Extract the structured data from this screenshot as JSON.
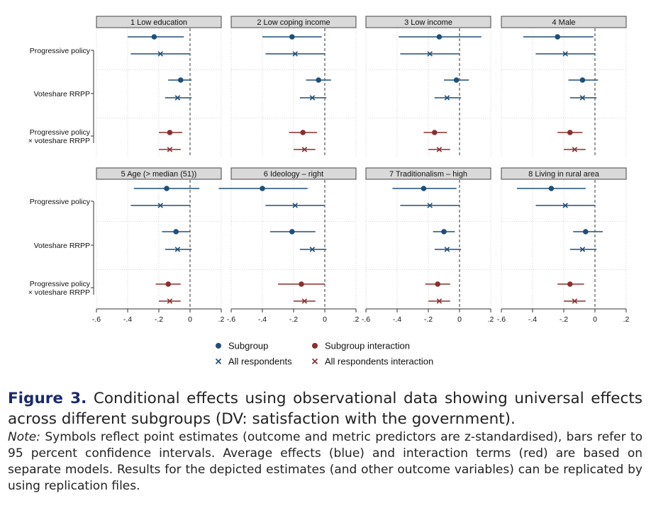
{
  "chart_data": {
    "type": "scatter",
    "subtype": "coefficient-plot",
    "xlim": [
      -0.6,
      0.2
    ],
    "xticks": [
      -0.6,
      -0.4,
      -0.2,
      0,
      0.2
    ],
    "xtick_labels": [
      "-.6",
      "-.4",
      "-.2",
      "0",
      ".2"
    ],
    "reference_line": 0,
    "row_labels": [
      "Progressive policy",
      "Voteshare RRPP",
      "Progressive policy\n× voteshare RRPP"
    ],
    "legend": [
      {
        "label": "Subgroup",
        "marker": "dot",
        "color": "#1f4e79"
      },
      {
        "label": "Subgroup interaction",
        "marker": "dot",
        "color": "#8b2e2e"
      },
      {
        "label": "All respondents",
        "marker": "x",
        "color": "#1f4e79"
      },
      {
        "label": "All respondents interaction",
        "marker": "x",
        "color": "#8b2e2e"
      }
    ],
    "panels": [
      {
        "title": "1 Low education",
        "rows": [
          {
            "sub": [
              -0.23,
              -0.4,
              -0.04
            ],
            "all": [
              -0.19,
              -0.38,
              0.0
            ]
          },
          {
            "sub": [
              -0.06,
              -0.14,
              0.01
            ],
            "all": [
              -0.08,
              -0.16,
              0.01
            ]
          },
          {
            "sub": [
              -0.13,
              -0.2,
              -0.05
            ],
            "all": [
              -0.13,
              -0.2,
              -0.06
            ]
          }
        ]
      },
      {
        "title": "2 Low coping income",
        "rows": [
          {
            "sub": [
              -0.21,
              -0.4,
              -0.02
            ],
            "all": [
              -0.19,
              -0.38,
              0.0
            ]
          },
          {
            "sub": [
              -0.04,
              -0.12,
              0.04
            ],
            "all": [
              -0.08,
              -0.16,
              0.01
            ]
          },
          {
            "sub": [
              -0.14,
              -0.23,
              -0.05
            ],
            "all": [
              -0.13,
              -0.2,
              -0.06
            ]
          }
        ]
      },
      {
        "title": "3 Low income",
        "rows": [
          {
            "sub": [
              -0.13,
              -0.39,
              0.14
            ],
            "all": [
              -0.19,
              -0.38,
              0.0
            ]
          },
          {
            "sub": [
              -0.02,
              -0.1,
              0.06
            ],
            "all": [
              -0.08,
              -0.16,
              0.01
            ]
          },
          {
            "sub": [
              -0.16,
              -0.23,
              -0.08
            ],
            "all": [
              -0.13,
              -0.2,
              -0.06
            ]
          }
        ]
      },
      {
        "title": "4 Male",
        "rows": [
          {
            "sub": [
              -0.24,
              -0.46,
              -0.01
            ],
            "all": [
              -0.19,
              -0.38,
              0.0
            ]
          },
          {
            "sub": [
              -0.08,
              -0.17,
              0.02
            ],
            "all": [
              -0.08,
              -0.16,
              0.01
            ]
          },
          {
            "sub": [
              -0.16,
              -0.24,
              -0.08
            ],
            "all": [
              -0.13,
              -0.2,
              -0.06
            ]
          }
        ]
      },
      {
        "title": "5 Age (> median (51))",
        "rows": [
          {
            "sub": [
              -0.15,
              -0.36,
              0.06
            ],
            "all": [
              -0.19,
              -0.38,
              0.0
            ]
          },
          {
            "sub": [
              -0.09,
              -0.18,
              0.0
            ],
            "all": [
              -0.08,
              -0.16,
              0.01
            ]
          },
          {
            "sub": [
              -0.14,
              -0.22,
              -0.06
            ],
            "all": [
              -0.13,
              -0.2,
              -0.06
            ]
          }
        ]
      },
      {
        "title": "6 Ideology – right",
        "rows": [
          {
            "sub": [
              -0.4,
              -0.68,
              -0.11
            ],
            "all": [
              -0.19,
              -0.38,
              0.0
            ]
          },
          {
            "sub": [
              -0.21,
              -0.35,
              -0.06
            ],
            "all": [
              -0.08,
              -0.16,
              0.01
            ]
          },
          {
            "sub": [
              -0.15,
              -0.3,
              0.0
            ],
            "all": [
              -0.13,
              -0.2,
              -0.06
            ]
          }
        ]
      },
      {
        "title": "7 Traditionalism – high",
        "rows": [
          {
            "sub": [
              -0.23,
              -0.43,
              -0.02
            ],
            "all": [
              -0.19,
              -0.38,
              0.0
            ]
          },
          {
            "sub": [
              -0.1,
              -0.17,
              -0.03
            ],
            "all": [
              -0.08,
              -0.16,
              0.01
            ]
          },
          {
            "sub": [
              -0.14,
              -0.22,
              -0.06
            ],
            "all": [
              -0.13,
              -0.2,
              -0.06
            ]
          }
        ]
      },
      {
        "title": "8 Living in rural area",
        "rows": [
          {
            "sub": [
              -0.28,
              -0.5,
              -0.06
            ],
            "all": [
              -0.19,
              -0.38,
              0.0
            ]
          },
          {
            "sub": [
              -0.06,
              -0.14,
              0.05
            ],
            "all": [
              -0.08,
              -0.16,
              0.01
            ]
          },
          {
            "sub": [
              -0.16,
              -0.24,
              -0.07
            ],
            "all": [
              -0.13,
              -0.2,
              -0.06
            ]
          }
        ]
      }
    ]
  },
  "caption": {
    "figure_label": "Figure 3.",
    "title": "Conditional effects using observational data showing universal effects across different subgroups (DV: satisfaction with the government).",
    "note_label": "Note:",
    "note": "Symbols reflect point estimates (outcome and metric predictors are z-standardised), bars refer to 95 percent confidence intervals. Average effects (blue) and interaction terms (red) are based on separate models. Results for the depicted estimates (and other outcome variables) can be replicated by using replication files."
  },
  "colors": {
    "blue": "#1f4e79",
    "red": "#8b2e2e",
    "strip": "#d9d9d9",
    "grid": "#c8c8c8"
  }
}
